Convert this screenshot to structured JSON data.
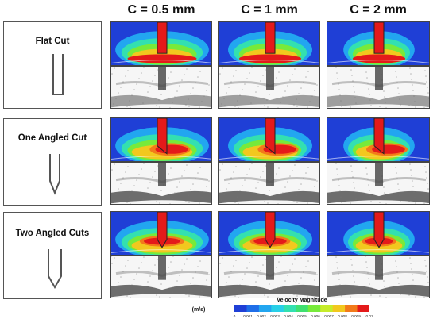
{
  "columns": [
    {
      "label": "C = 0.5 mm"
    },
    {
      "label": "C = 1 mm"
    },
    {
      "label": "C = 2 mm"
    }
  ],
  "rows": [
    {
      "label": "Flat Cut",
      "tip": "flat"
    },
    {
      "label": "One Angled Cut",
      "tip": "one"
    },
    {
      "label": "Two Angled Cuts",
      "tip": "two"
    }
  ],
  "legend": {
    "title_line1": "Velocity Magnitude",
    "title_line2": "(m/s)",
    "ticks": [
      "0",
      "0.001",
      "0.002",
      "0.003",
      "0.004",
      "0.005",
      "0.006",
      "0.007",
      "0.008",
      "0.009",
      "0.01"
    ],
    "colors": [
      "#1f3fd6",
      "#1f6ee8",
      "#22a6f0",
      "#28d0e8",
      "#33e0b0",
      "#3fe070",
      "#77ea3a",
      "#c6ec2a",
      "#f2c81e",
      "#f27a1a",
      "#e41a1a"
    ]
  }
}
